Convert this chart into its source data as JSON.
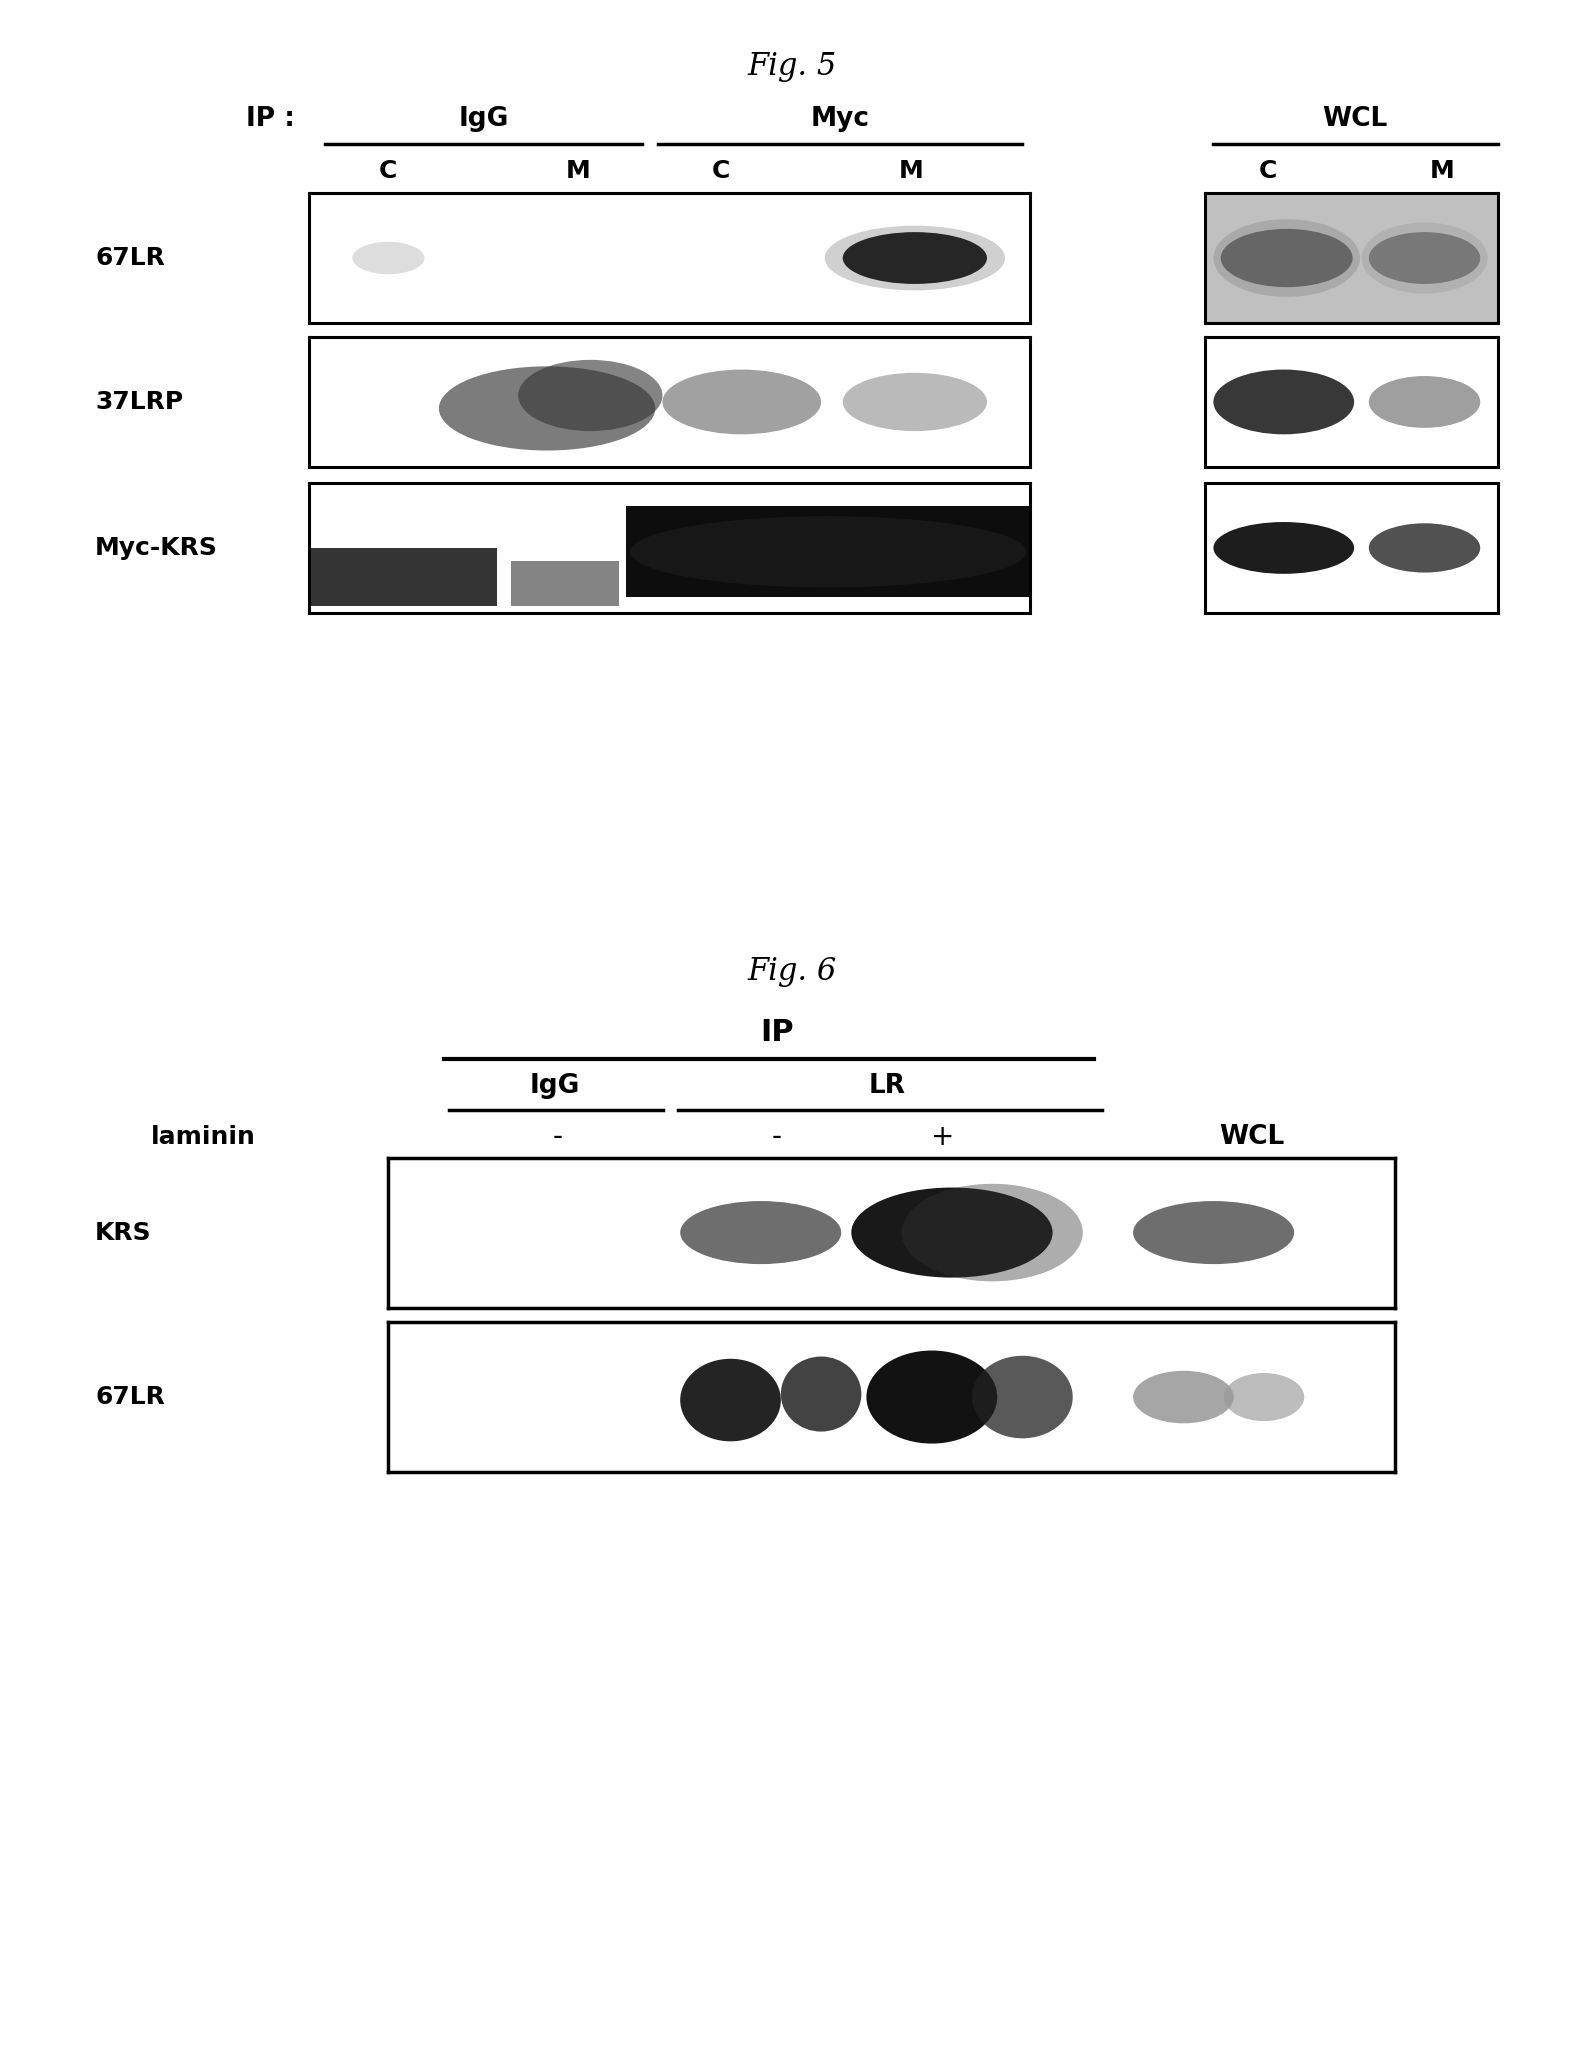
{
  "fig5_title": "Fig. 5",
  "fig6_title": "Fig. 6",
  "background_color": "#ffffff",
  "fig5": {
    "ip_label": "IP :",
    "group_labels": [
      "IgG",
      "Myc",
      "WCL"
    ],
    "col_labels": [
      "C",
      "M",
      "C",
      "M",
      "C",
      "M"
    ],
    "row_labels": [
      "67LR",
      "37LRP",
      "Myc-KRS"
    ]
  },
  "fig6": {
    "ip_label": "IP",
    "group_labels": [
      "IgG",
      "LR"
    ],
    "laminin_label": "laminin",
    "laminin_values": [
      "-",
      "-",
      "+",
      "WCL"
    ],
    "row_labels": [
      "KRS",
      "67LR"
    ]
  }
}
